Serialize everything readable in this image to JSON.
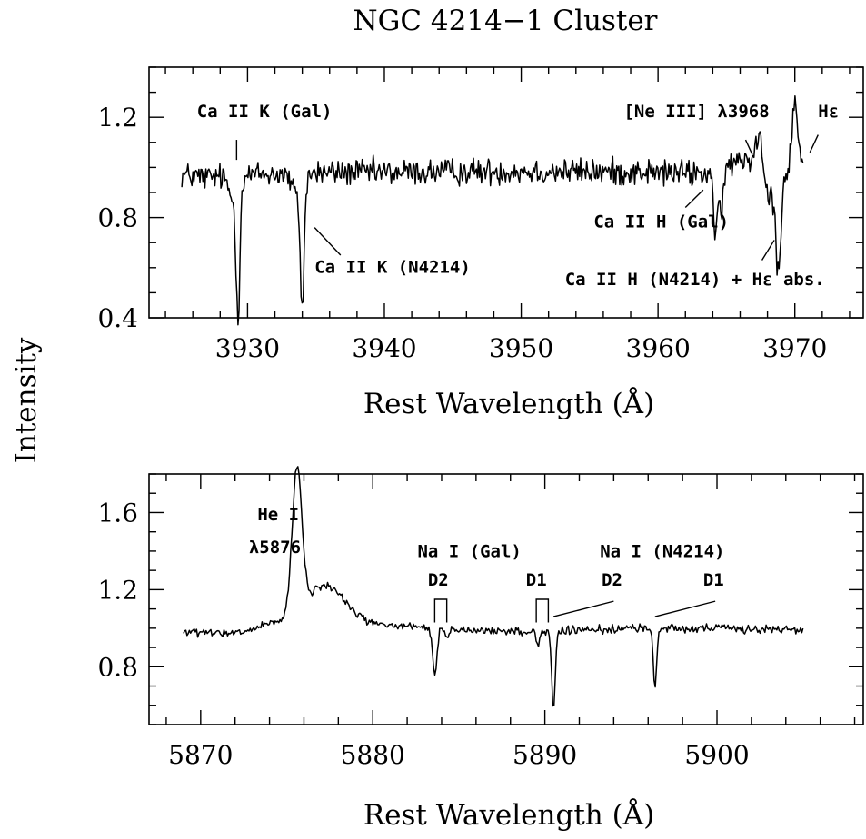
{
  "title": "NGC 4214−1 Cluster",
  "ylabel": "Intensity",
  "chart_data": [
    {
      "type": "line",
      "xlabel": "Rest Wavelength (Å)",
      "xlim": [
        3922.8,
        3975
      ],
      "ylim": [
        0.4,
        1.4
      ],
      "xticks": [
        3930,
        3940,
        3950,
        3960,
        3970
      ],
      "yticks": [
        0.4,
        0.8,
        1.2
      ],
      "x_tick_labels": [
        "3930",
        "3940",
        "3950",
        "3960",
        "3970"
      ],
      "y_tick_labels": [
        "0.4",
        "0.8",
        "1.2"
      ],
      "line_color": "#000000",
      "series": [
        {
          "x_range": [
            3925.2,
            3970.6
          ],
          "noise": 0.038,
          "continuum": [
            [
              3925.2,
              0.97
            ],
            [
              3927,
              0.96
            ],
            [
              3930,
              0.97
            ],
            [
              3935,
              0.98
            ],
            [
              3940,
              0.98
            ],
            [
              3950,
              0.985
            ],
            [
              3960,
              0.98
            ],
            [
              3963.5,
              0.975
            ],
            [
              3965,
              1.0
            ],
            [
              3966.5,
              1.04
            ],
            [
              3970.6,
              1.0
            ]
          ],
          "features": [
            {
              "center": 3929.3,
              "depth": -0.5,
              "sigma": 0.13
            },
            {
              "center": 3929.0,
              "depth": -0.1,
              "sigma": 0.35
            },
            {
              "center": 3934.0,
              "depth": -0.47,
              "sigma": 0.13
            },
            {
              "center": 3933.7,
              "depth": -0.1,
              "sigma": 0.4
            },
            {
              "center": 3964.2,
              "depth": -0.3,
              "sigma": 0.12
            },
            {
              "center": 3964.6,
              "depth": -0.22,
              "sigma": 0.12
            },
            {
              "center": 3967.4,
              "depth": 0.15,
              "sigma": 0.22
            },
            {
              "center": 3968.8,
              "depth": -0.35,
              "sigma": 0.18
            },
            {
              "center": 3968.3,
              "depth": -0.12,
              "sigma": 0.6
            },
            {
              "center": 3970.0,
              "depth": 0.27,
              "sigma": 0.2
            }
          ]
        }
      ],
      "annotations": [
        {
          "text": "Ca II K (Gal)",
          "line_x": [
            3929.2,
            3929.2
          ],
          "line_y": [
            1.11,
            1.03
          ],
          "text_x": 3926.3,
          "text_y": 1.2
        },
        {
          "text": "Ca II K (N4214)",
          "line_x": [
            3934.9,
            3936.8
          ],
          "line_y": [
            0.76,
            0.65
          ],
          "text_x": 3934.9,
          "text_y": 0.58
        },
        {
          "text": "[Ne III] λ3968",
          "line_x": [
            3966.4,
            3966.9
          ],
          "line_y": [
            1.11,
            1.05
          ],
          "text_x": 3957.5,
          "text_y": 1.2
        },
        {
          "text": "Hε",
          "line_x": [
            3971.7,
            3971.1
          ],
          "line_y": [
            1.13,
            1.06
          ],
          "text_x": 3971.7,
          "text_y": 1.2
        },
        {
          "text": "Ca II H (Gal)",
          "line_x": [
            3963.3,
            3962.0
          ],
          "line_y": [
            0.91,
            0.84
          ],
          "text_x": 3955.3,
          "text_y": 0.76
        },
        {
          "text": "Ca II H (N4214) + Hε abs.",
          "line_x": [
            3968.5,
            3967.6
          ],
          "line_y": [
            0.71,
            0.63
          ],
          "text_x": 3953.2,
          "text_y": 0.53
        }
      ]
    },
    {
      "type": "line",
      "xlabel": "Rest Wavelength (Å)",
      "xlim": [
        5867,
        5908.5
      ],
      "ylim": [
        0.5,
        1.8
      ],
      "xticks": [
        5870,
        5880,
        5890,
        5900
      ],
      "yticks": [
        0.8,
        1.2,
        1.6
      ],
      "x_tick_labels": [
        "5870",
        "5880",
        "5890",
        "5900"
      ],
      "y_tick_labels": [
        "0.8",
        "1.2",
        "1.6"
      ],
      "line_color": "#000000",
      "series": [
        {
          "x_range": [
            5869,
            5905
          ],
          "noise": 0.015,
          "continuum": [
            [
              5869,
              0.98
            ],
            [
              5872,
              0.97
            ],
            [
              5874,
              1.02
            ],
            [
              5876,
              1.05
            ],
            [
              5880,
              1.02
            ],
            [
              5885,
              0.99
            ],
            [
              5890,
              0.98
            ],
            [
              5895,
              1.0
            ],
            [
              5900,
              1.0
            ],
            [
              5905,
              0.99
            ]
          ],
          "features": [
            {
              "center": 5875.6,
              "depth": 0.74,
              "sigma": 0.28
            },
            {
              "center": 5877.3,
              "depth": 0.18,
              "sigma": 1.1
            },
            {
              "center": 5883.6,
              "depth": -0.24,
              "sigma": 0.12
            },
            {
              "center": 5884.3,
              "depth": -0.05,
              "sigma": 0.12
            },
            {
              "center": 5889.6,
              "depth": -0.06,
              "sigma": 0.1
            },
            {
              "center": 5890.5,
              "depth": -0.4,
              "sigma": 0.1
            },
            {
              "center": 5896.4,
              "depth": -0.3,
              "sigma": 0.1
            }
          ]
        }
      ],
      "annotations": [
        {
          "text": "He I",
          "text_x": 5873.3,
          "text_y": 1.56
        },
        {
          "text": "λ5876",
          "text_x": 5872.8,
          "text_y": 1.39
        },
        {
          "text": "Na I (Gal)",
          "text_x": 5882.6,
          "text_y": 1.37
        },
        {
          "text": "Na I (N4214)",
          "text_x": 5893.2,
          "text_y": 1.37
        },
        {
          "text": "D2",
          "text_x": 5883.2,
          "text_y": 1.22
        },
        {
          "text": "D1",
          "text_x": 5888.9,
          "text_y": 1.22
        },
        {
          "text": "D2",
          "text_x": 5893.3,
          "text_y": 1.22
        },
        {
          "text": "D1",
          "text_x": 5899.2,
          "text_y": 1.22
        }
      ],
      "brackets": [
        {
          "x1": 5883.6,
          "x2": 5884.3,
          "y_top": 1.15,
          "y_bot": 1.03
        },
        {
          "x1": 5889.5,
          "x2": 5890.2,
          "y_top": 1.15,
          "y_bot": 1.03
        }
      ],
      "leader_lines": [
        {
          "x": [
            5890.5,
            5894.0
          ],
          "y": [
            1.06,
            1.14
          ]
        },
        {
          "x": [
            5896.4,
            5899.9
          ],
          "y": [
            1.06,
            1.14
          ]
        }
      ]
    }
  ]
}
